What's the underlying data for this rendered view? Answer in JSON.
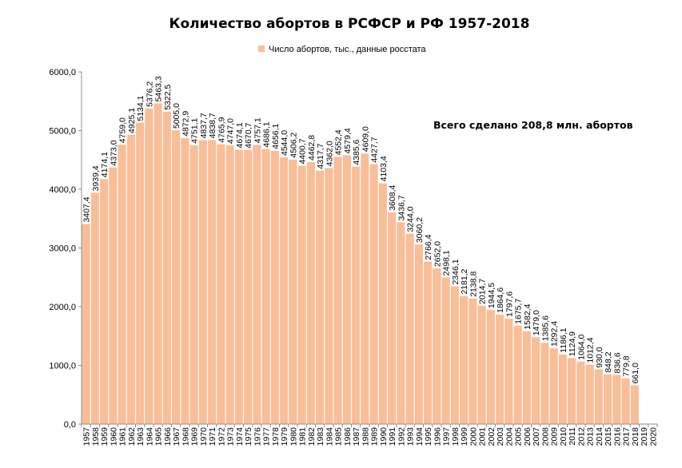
{
  "chart_data": {
    "type": "bar",
    "title": "Количество абортов  в РСФСР  и РФ  1957-2018",
    "legend": [
      "Число абортов, тыс., данные росстата"
    ],
    "legend_position": "top",
    "annotation": "Всего сделано 208,8 млн.  абортов",
    "bar_color": "#F9BE97",
    "grid": false,
    "ylim": [
      0,
      6000
    ],
    "yticks": [
      "0,0",
      "1000,0",
      "2000,0",
      "3000,0",
      "4000,0",
      "5000,0",
      "6000,0"
    ],
    "categories": [
      "1957",
      "1958",
      "1959",
      "1960",
      "1961",
      "1962",
      "1963",
      "1964",
      "1965",
      "1966",
      "1967",
      "1968",
      "1969",
      "1970",
      "1971",
      "1972",
      "1973",
      "1974",
      "1975",
      "1976",
      "1977",
      "1978",
      "1979",
      "1980",
      "1981",
      "1982",
      "1983",
      "1984",
      "1985",
      "1986",
      "1987",
      "1988",
      "1989",
      "1990",
      "1991",
      "1992",
      "1993",
      "1994",
      "1995",
      "1996",
      "1997",
      "1998",
      "1999",
      "2000",
      "2001",
      "2002",
      "2003",
      "2004",
      "2005",
      "2006",
      "2007",
      "2008",
      "2009",
      "2010",
      "2011",
      "2012",
      "2013",
      "2014",
      "2015",
      "2016",
      "2017",
      "2018",
      "2019",
      "2020"
    ],
    "values": [
      3407.4,
      3939.4,
      4174.1,
      4373.0,
      4759.0,
      4925.1,
      5134.1,
      5376.2,
      5463.3,
      5322.5,
      5005.0,
      4872.9,
      4751.1,
      4837.7,
      4838.7,
      4765.9,
      4747.0,
      4674.1,
      4670.7,
      4757.1,
      4686.1,
      4656.1,
      4544.0,
      4506.2,
      4400.7,
      4462.8,
      4317.7,
      4362.0,
      4552.4,
      4579.4,
      4385.6,
      4609.0,
      4427.7,
      4103.4,
      3608.4,
      3436.7,
      3244.0,
      3060.2,
      2766.4,
      2652.0,
      2498.1,
      2346.1,
      2181.2,
      2138.8,
      2014.7,
      1944.5,
      1864.6,
      1797.6,
      1675.7,
      1582.4,
      1479.0,
      1385.6,
      1292.4,
      1186.1,
      1124.9,
      1064.0,
      1012.4,
      930.0,
      848.2,
      836.6,
      779.8,
      661.0,
      null,
      null
    ],
    "data_labels": [
      "3407,4",
      "3939,4",
      "4174,1",
      "4373,0",
      "4759,0",
      "4925,1",
      "5134,1",
      "5376,2",
      "5463,3",
      "5322,5",
      "5005,0",
      "4872,9",
      "4751,1",
      "4837,7",
      "4838,7",
      "4765,9",
      "4747,0",
      "4674,1",
      "4670,7",
      "4757,1",
      "4686,1",
      "4656,1",
      "4544,0",
      "4506,2",
      "4400,7",
      "4462,8",
      "4317,7",
      "4362,0",
      "4552,4",
      "4579,4",
      "4385,6",
      "4609,0",
      "4427,7",
      "4103,4",
      "3608,4",
      "3436,7",
      "3244,0",
      "3060,2",
      "2766,4",
      "2652,0",
      "2498,1",
      "2346,1",
      "2181,2",
      "2138,8",
      "2014,7",
      "1944,5",
      "1864,6",
      "1797,6",
      "1675,7",
      "1582,4",
      "1479,0",
      "1385,6",
      "1292,4",
      "1186,1",
      "1124,9",
      "1064,0",
      "1012,4",
      "930,0",
      "848,2",
      "836,6",
      "779,8",
      "661,0",
      null,
      null
    ]
  }
}
